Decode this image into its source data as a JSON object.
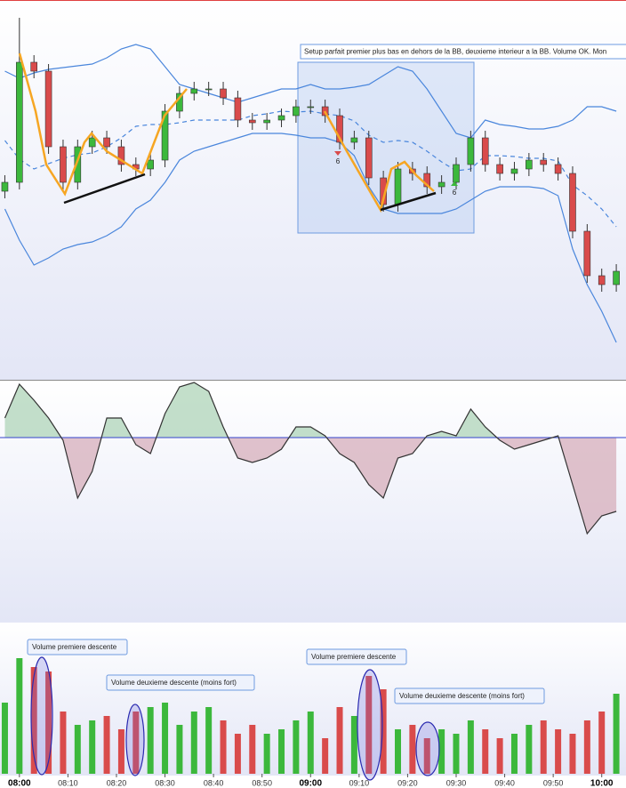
{
  "chart_data": {
    "type": "candlestick",
    "x": [
      "07:57",
      "08:00",
      "08:03",
      "08:06",
      "08:09",
      "08:12",
      "08:15",
      "08:18",
      "08:21",
      "08:24",
      "08:27",
      "08:30",
      "08:33",
      "08:36",
      "08:39",
      "08:42",
      "08:45",
      "08:48",
      "08:51",
      "08:54",
      "08:57",
      "09:00",
      "09:03",
      "09:06",
      "09:09",
      "09:12",
      "09:15",
      "09:18",
      "09:21",
      "09:24",
      "09:27",
      "09:30",
      "09:33",
      "09:36",
      "09:39",
      "09:42",
      "09:45",
      "09:48",
      "09:51",
      "09:54",
      "09:57",
      "10:00",
      "10:03"
    ],
    "xlim": [
      "07:56",
      "10:05"
    ],
    "xticks": [
      "08:00",
      "08:10",
      "08:20",
      "08:30",
      "08:40",
      "08:50",
      "09:00",
      "09:10",
      "09:20",
      "09:30",
      "09:40",
      "09:50",
      "10:00"
    ],
    "open": [
      205,
      215,
      350,
      340,
      255,
      215,
      255,
      265,
      255,
      235,
      230,
      240,
      295,
      315,
      320,
      320,
      310,
      285,
      282,
      285,
      290,
      300,
      300,
      290,
      260,
      265,
      220,
      190,
      230,
      225,
      210,
      215,
      235,
      265,
      235,
      225,
      230,
      240,
      235,
      225,
      160,
      110,
      100
    ],
    "high": [
      223,
      400,
      358,
      348,
      263,
      263,
      273,
      273,
      263,
      243,
      248,
      303,
      323,
      328,
      328,
      328,
      318,
      293,
      293,
      298,
      308,
      308,
      308,
      298,
      273,
      273,
      228,
      238,
      238,
      233,
      223,
      243,
      273,
      273,
      243,
      238,
      248,
      248,
      243,
      233,
      168,
      118,
      123
    ],
    "low": [
      197,
      207,
      332,
      247,
      207,
      207,
      247,
      247,
      227,
      222,
      222,
      232,
      287,
      307,
      312,
      302,
      277,
      274,
      274,
      277,
      282,
      292,
      282,
      252,
      252,
      212,
      182,
      182,
      217,
      202,
      202,
      207,
      227,
      227,
      217,
      217,
      222,
      227,
      217,
      152,
      102,
      92,
      92
    ],
    "close": [
      215,
      350,
      340,
      255,
      215,
      255,
      265,
      255,
      235,
      230,
      240,
      295,
      315,
      320,
      320,
      310,
      285,
      282,
      285,
      290,
      300,
      300,
      290,
      260,
      265,
      220,
      190,
      230,
      225,
      210,
      215,
      235,
      265,
      235,
      225,
      230,
      240,
      235,
      225,
      160,
      110,
      100,
      115
    ],
    "ylim": [
      0,
      420
    ],
    "up_color": "#3cb83c",
    "down_color": "#d94b4b",
    "bands": {
      "color": "#4a86dc",
      "upper": [
        340,
        332,
        338,
        342,
        344,
        346,
        348,
        355,
        365,
        370,
        365,
        345,
        325,
        320,
        315,
        310,
        305,
        310,
        315,
        320,
        320,
        325,
        320,
        320,
        322,
        325,
        335,
        345,
        340,
        320,
        295,
        270,
        265,
        285,
        280,
        278,
        275,
        275,
        278,
        285,
        300,
        300,
        295
      ],
      "middle": [
        262,
        241,
        230,
        236,
        242,
        246,
        248,
        255,
        265,
        278,
        280,
        280,
        282,
        285,
        285,
        285,
        285,
        290,
        292,
        295,
        294,
        295,
        292,
        290,
        284,
        268,
        260,
        262,
        260,
        250,
        238,
        228,
        230,
        245,
        245,
        244,
        242,
        242,
        239,
        212,
        200,
        185,
        165
      ],
      "lower": [
        185,
        150,
        122,
        130,
        140,
        145,
        148,
        155,
        165,
        185,
        195,
        215,
        240,
        250,
        255,
        260,
        265,
        270,
        270,
        270,
        268,
        265,
        265,
        260,
        245,
        210,
        185,
        180,
        180,
        180,
        180,
        185,
        195,
        205,
        210,
        210,
        210,
        208,
        200,
        140,
        100,
        70,
        35
      ]
    },
    "oscillator": {
      "values": [
        22,
        60,
        42,
        22,
        -3,
        -68,
        -38,
        22,
        22,
        -8,
        -18,
        27,
        57,
        62,
        52,
        12,
        -23,
        -28,
        -23,
        -13,
        12,
        12,
        2,
        -18,
        -28,
        -53,
        -68,
        -23,
        -18,
        2,
        7,
        2,
        32,
        12,
        -3,
        -13,
        -8,
        -3,
        2,
        -53,
        -108,
        -88,
        -83
      ],
      "ylim": [
        -208,
        64
      ]
    },
    "volume": {
      "values": [
        80,
        130,
        120,
        115,
        70,
        55,
        60,
        65,
        50,
        70,
        75,
        80,
        55,
        70,
        75,
        60,
        45,
        55,
        45,
        50,
        60,
        70,
        40,
        75,
        65,
        110,
        95,
        50,
        55,
        40,
        50,
        45,
        60,
        50,
        40,
        45,
        55,
        60,
        50,
        45,
        60,
        70,
        90
      ],
      "ylim": [
        0,
        170
      ]
    },
    "annotations": {
      "setup": "Setup parfait premier plus bas en dehors de la BB, deuxieme interieur a la BB. Volume OK. Mon",
      "volume_labels": [
        "Volume premiere descente",
        "Volume deuxieme descente (moins fort)",
        "Volume premiere descente",
        "Volume deuxieme descente (moins fort)"
      ],
      "signal_labels": [
        "6",
        "6"
      ]
    }
  }
}
